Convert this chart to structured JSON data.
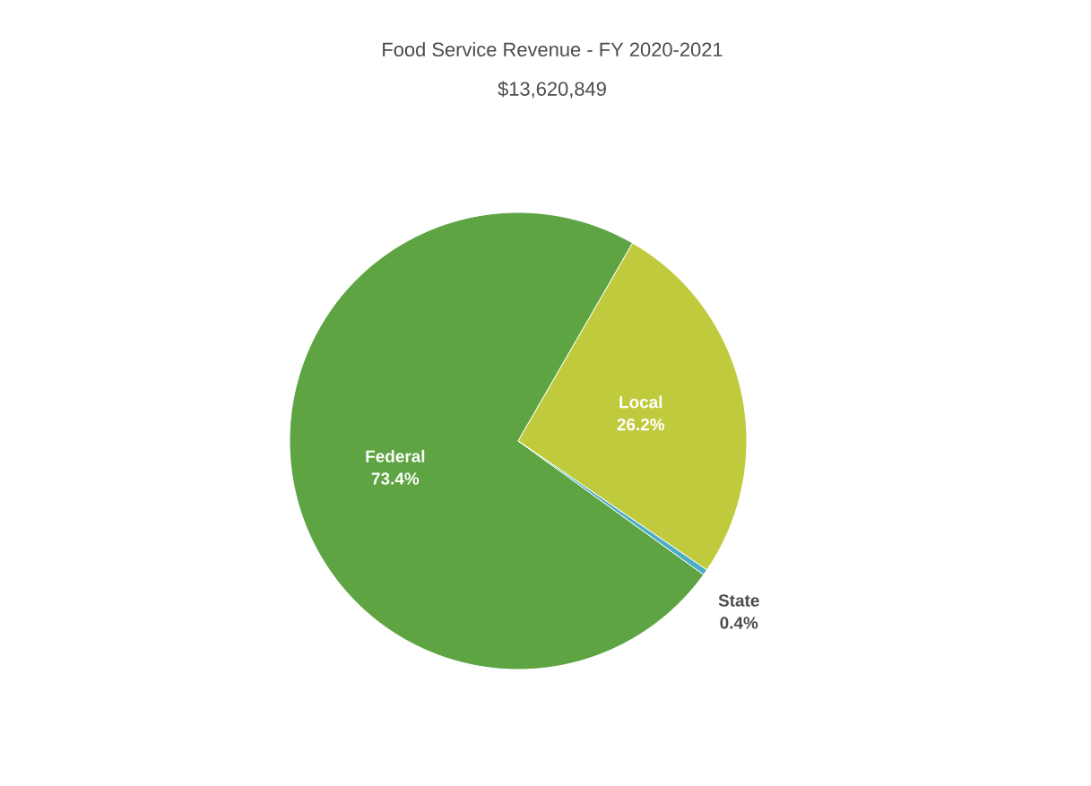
{
  "chart_data": {
    "type": "pie",
    "title": "Food Service Revenue - FY 2020-2021",
    "subtitle": "$13,620,849",
    "categories": [
      "Federal",
      "Local",
      "State"
    ],
    "values": [
      73.4,
      26.2,
      0.4
    ],
    "colors": [
      "#5ea443",
      "#bfcb3c",
      "#4bacc6"
    ],
    "data_labels": true,
    "value_labels": [
      "73.4%",
      "26.2%",
      "0.4%"
    ]
  }
}
